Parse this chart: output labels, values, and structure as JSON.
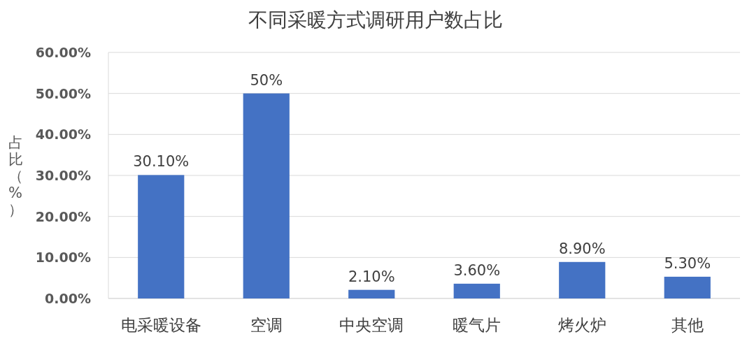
{
  "chart_data": {
    "type": "bar",
    "title": "不同采暖方式调研用户数占比",
    "ylabel": "占比（%）",
    "categories": [
      "电采暖设备",
      "空调",
      "中央空调",
      "暖气片",
      "烤火炉",
      "其他"
    ],
    "values": [
      30.1,
      50,
      2.1,
      3.6,
      8.9,
      5.3
    ],
    "value_labels": [
      "30.10%",
      "50%",
      "2.10%",
      "3.60%",
      "8.90%",
      "5.30%"
    ],
    "color": "#4472c4",
    "ylim": [
      0,
      60
    ],
    "yticks": [
      {
        "value": 0,
        "label": "0.00%"
      },
      {
        "value": 10,
        "label": "10.00%"
      },
      {
        "value": 20,
        "label": "20.00%"
      },
      {
        "value": 30,
        "label": "30.00%"
      },
      {
        "value": 40,
        "label": "40.00%"
      },
      {
        "value": 50,
        "label": "50.00%"
      },
      {
        "value": 60,
        "label": "60.00%"
      }
    ],
    "grid": "y"
  }
}
